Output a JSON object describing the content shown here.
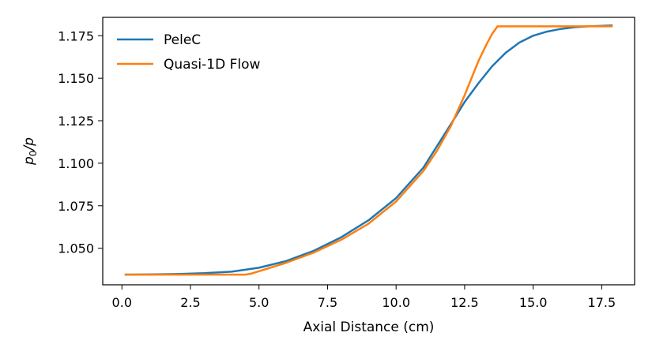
{
  "chart_data": {
    "type": "line",
    "xlabel": "Axial Distance (cm)",
    "ylabel_main": "p",
    "ylabel_sub": "0",
    "ylabel_tail": "/p",
    "xlim": [
      -0.7,
      18.7
    ],
    "ylim": [
      1.0285,
      1.1858
    ],
    "xticks": [
      0.0,
      2.5,
      5.0,
      7.5,
      10.0,
      12.5,
      15.0,
      17.5
    ],
    "xtick_labels": [
      "0.0",
      "2.5",
      "5.0",
      "7.5",
      "10.0",
      "12.5",
      "15.0",
      "17.5"
    ],
    "yticks": [
      1.05,
      1.075,
      1.1,
      1.125,
      1.15,
      1.175
    ],
    "ytick_labels": [
      "1.050",
      "1.075",
      "1.100",
      "1.125",
      "1.150",
      "1.175"
    ],
    "legend_position": "upper-left",
    "grid": false,
    "series": [
      {
        "name": "PeleC",
        "color": "#1f77b4",
        "x": [
          0.1,
          1.0,
          2.0,
          3.0,
          4.0,
          5.0,
          6.0,
          7.0,
          8.0,
          9.0,
          10.0,
          11.0,
          12.0,
          12.5,
          13.0,
          13.5,
          14.0,
          14.5,
          15.0,
          15.5,
          16.0,
          16.5,
          17.0,
          17.9
        ],
        "y": [
          1.0345,
          1.0346,
          1.0348,
          1.0353,
          1.0362,
          1.0385,
          1.0425,
          1.0485,
          1.0565,
          1.0665,
          1.0795,
          1.0975,
          1.123,
          1.136,
          1.147,
          1.157,
          1.165,
          1.171,
          1.175,
          1.1774,
          1.179,
          1.18,
          1.1805,
          1.181
        ]
      },
      {
        "name": "Quasi-1D Flow",
        "color": "#ff7f0e",
        "x": [
          0.1,
          1.0,
          2.0,
          3.0,
          4.0,
          4.5,
          4.7,
          5.0,
          6.0,
          7.0,
          8.0,
          9.0,
          10.0,
          11.0,
          11.5,
          12.0,
          12.5,
          13.0,
          13.3,
          13.5,
          13.7,
          14.5,
          15.5,
          16.5,
          17.9
        ],
        "y": [
          1.0345,
          1.0345,
          1.0345,
          1.0345,
          1.0345,
          1.0345,
          1.035,
          1.0365,
          1.0415,
          1.0475,
          1.055,
          1.0645,
          1.0775,
          1.0955,
          1.1075,
          1.122,
          1.14,
          1.16,
          1.17,
          1.176,
          1.1805,
          1.1805,
          1.1805,
          1.1805,
          1.1805
        ]
      }
    ]
  }
}
